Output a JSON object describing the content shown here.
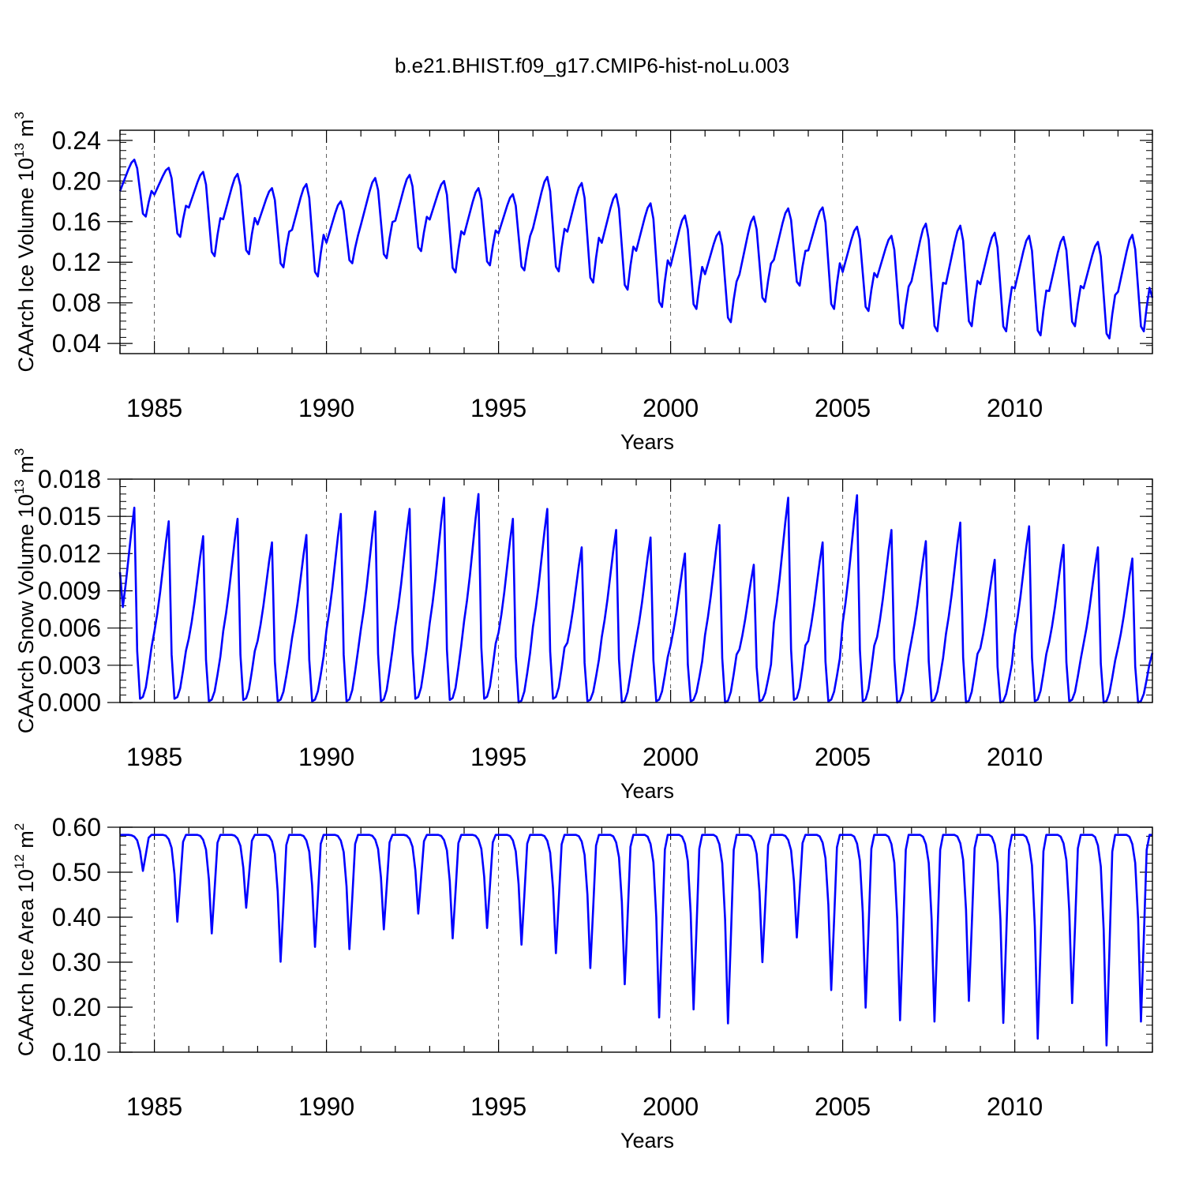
{
  "title": "b.e21.BHIST.f09_g17.CMIP6-hist-noLu.003",
  "colors": {
    "line": "#0000ff",
    "frame": "#000000",
    "grid": "#000000"
  },
  "chart_data": [
    {
      "type": "line",
      "name": "ice-volume",
      "ylabel_main": "CAArch Ice Volume 10",
      "ylabel_exp": "13",
      "ylabel_unit": " m",
      "ylabel_unit_exp": "3",
      "xlabel": "Years",
      "xlim": [
        1984.0,
        2014.0
      ],
      "ylim": [
        0.03,
        0.25
      ],
      "xticks": [
        1985,
        1990,
        1995,
        2000,
        2005,
        2010
      ],
      "xtick_labels": [
        "1985",
        "1990",
        "1995",
        "2000",
        "2005",
        "2010"
      ],
      "yticks": [
        0.04,
        0.08,
        0.12,
        0.16,
        0.2,
        0.24
      ],
      "ytick_labels": [
        "0.04",
        "0.08",
        "0.12",
        "0.16",
        "0.20",
        "0.24"
      ],
      "annual_max": [
        0.221,
        0.213,
        0.209,
        0.207,
        0.193,
        0.197,
        0.18,
        0.203,
        0.206,
        0.2,
        0.193,
        0.187,
        0.204,
        0.198,
        0.187,
        0.178,
        0.166,
        0.15,
        0.165,
        0.173,
        0.174,
        0.155,
        0.146,
        0.158,
        0.156,
        0.149,
        0.146,
        0.145,
        0.14,
        0.147
      ],
      "annual_min": [
        0.165,
        0.145,
        0.126,
        0.128,
        0.115,
        0.106,
        0.119,
        0.124,
        0.131,
        0.11,
        0.117,
        0.112,
        0.111,
        0.1,
        0.093,
        0.076,
        0.074,
        0.061,
        0.081,
        0.097,
        0.074,
        0.072,
        0.055,
        0.052,
        0.057,
        0.052,
        0.048,
        0.057,
        0.045,
        0.052
      ],
      "x_start": 1984.0,
      "x_end": 2014.0,
      "y_start": 0.19,
      "y_end": 0.085
    },
    {
      "type": "line",
      "name": "snow-volume",
      "ylabel_main": "CAArch Snow Volume 10",
      "ylabel_exp": "13",
      "ylabel_unit": " m",
      "ylabel_unit_exp": "3",
      "xlabel": "Years",
      "xlim": [
        1984.0,
        2014.0
      ],
      "ylim": [
        0.0,
        0.018
      ],
      "xticks": [
        1985,
        1990,
        1995,
        2000,
        2005,
        2010
      ],
      "xtick_labels": [
        "1985",
        "1990",
        "1995",
        "2000",
        "2005",
        "2010"
      ],
      "yticks": [
        0.0,
        0.003,
        0.006,
        0.009,
        0.012,
        0.015,
        0.018
      ],
      "ytick_labels": [
        "0.000",
        "0.003",
        "0.006",
        "0.009",
        "0.012",
        "0.015",
        "0.018"
      ],
      "annual_max": [
        0.0157,
        0.0146,
        0.0134,
        0.0148,
        0.0129,
        0.0135,
        0.0152,
        0.0154,
        0.0156,
        0.0165,
        0.0168,
        0.0148,
        0.0156,
        0.0125,
        0.0139,
        0.0133,
        0.012,
        0.0143,
        0.0111,
        0.0165,
        0.0129,
        0.0167,
        0.0139,
        0.013,
        0.0145,
        0.0115,
        0.0142,
        0.0127,
        0.0125,
        0.0116
      ],
      "annual_min": [
        0.0003,
        0.0003,
        0.0001,
        0.0002,
        0.0001,
        0.0001,
        0.0001,
        0.0001,
        0.0003,
        0.0002,
        0.0003,
        0.0,
        0.0003,
        0.0001,
        0.0,
        0.0001,
        0.0001,
        0.0,
        0.0001,
        0.0002,
        0.0001,
        0.0001,
        0.0,
        0.0001,
        0.0,
        0.0,
        0.0001,
        0.0001,
        0.0,
        0.0
      ],
      "x_start": 1984.0,
      "x_end": 2014.0,
      "y_start": 0.0105,
      "y_end": 0.004
    },
    {
      "type": "line",
      "name": "ice-area",
      "ylabel_main": "CAArch Ice Area 10",
      "ylabel_exp": "12",
      "ylabel_unit": " m",
      "ylabel_unit_exp": "2",
      "xlabel": "Years",
      "xlim": [
        1984.0,
        2014.0
      ],
      "ylim": [
        0.1,
        0.6
      ],
      "xticks": [
        1985,
        1990,
        1995,
        2000,
        2005,
        2010
      ],
      "xtick_labels": [
        "1985",
        "1990",
        "1995",
        "2000",
        "2005",
        "2010"
      ],
      "yticks": [
        0.1,
        0.2,
        0.3,
        0.4,
        0.5,
        0.6
      ],
      "ytick_labels": [
        "0.10",
        "0.20",
        "0.30",
        "0.40",
        "0.50",
        "0.60"
      ],
      "annual_max": [
        0.583,
        0.583,
        0.583,
        0.583,
        0.583,
        0.583,
        0.583,
        0.583,
        0.583,
        0.583,
        0.583,
        0.583,
        0.583,
        0.583,
        0.583,
        0.583,
        0.583,
        0.583,
        0.583,
        0.583,
        0.583,
        0.583,
        0.583,
        0.583,
        0.583,
        0.583,
        0.583,
        0.583,
        0.583,
        0.583
      ],
      "annual_min": [
        0.503,
        0.39,
        0.364,
        0.421,
        0.301,
        0.334,
        0.329,
        0.373,
        0.408,
        0.353,
        0.376,
        0.339,
        0.32,
        0.287,
        0.251,
        0.177,
        0.195,
        0.164,
        0.3,
        0.355,
        0.238,
        0.199,
        0.171,
        0.168,
        0.214,
        0.165,
        0.13,
        0.209,
        0.115,
        0.168
      ],
      "x_start": 1984.0,
      "x_end": 2014.0,
      "y_start": 0.583,
      "y_end": 0.583
    }
  ]
}
